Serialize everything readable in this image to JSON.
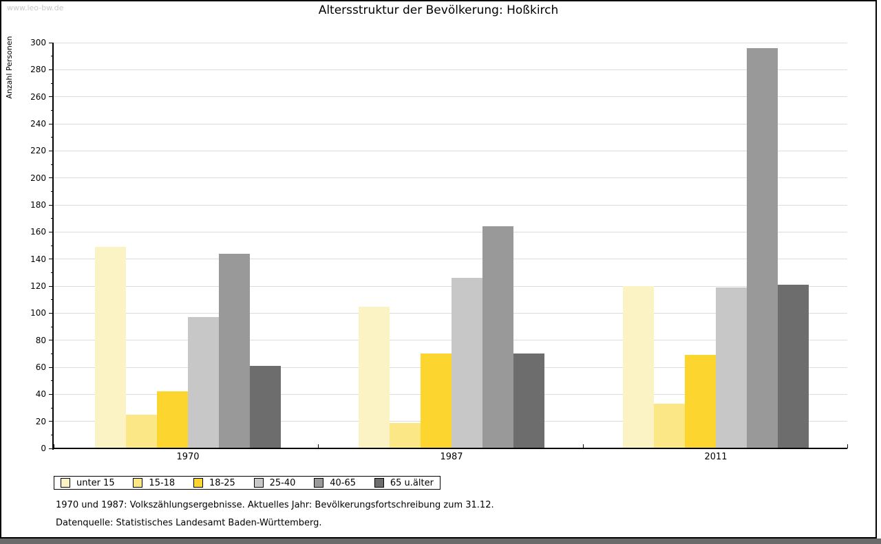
{
  "watermark": "www.leo-bw.de",
  "header": {
    "title": "Altersstruktur der Bevölkerung: Hoßkirch"
  },
  "chart_data": {
    "type": "bar",
    "title": "Altersstruktur der Bevölkerung: Hoßkirch",
    "xlabel": "",
    "ylabel": "Anzahl Personen",
    "categories": [
      "1970",
      "1987",
      "2011"
    ],
    "series": [
      {
        "name": "unter 15",
        "color": "#fbf3c3",
        "values": [
          149,
          105,
          120
        ]
      },
      {
        "name": "15-18",
        "color": "#fce786",
        "values": [
          25,
          19,
          33
        ]
      },
      {
        "name": "18-25",
        "color": "#fcd62f",
        "values": [
          42,
          70,
          69
        ]
      },
      {
        "name": "25-40",
        "color": "#c7c7c7",
        "values": [
          97,
          126,
          119
        ]
      },
      {
        "name": "40-65",
        "color": "#999999",
        "values": [
          144,
          164,
          296
        ]
      },
      {
        "name": "65 u.älter",
        "color": "#6d6d6d",
        "values": [
          61,
          70,
          121
        ]
      }
    ],
    "ylim": [
      0,
      300
    ],
    "ytick_step": 20,
    "minor_tick_step": 10,
    "grid": true,
    "legend_position": "bottom"
  },
  "footer": {
    "line1": "1970 und 1987: Volkszählungsergebnisse. Aktuelles Jahr: Bevölkerungsfortschreibung zum 31.12.",
    "line2": "Datenquelle: Statistisches Landesamt Baden-Württemberg."
  },
  "colors": {
    "gridline": "#dcdcdc",
    "axis": "#000000",
    "watermark": "#c9c9c9",
    "bottom_strip": "#6b6b6b"
  }
}
